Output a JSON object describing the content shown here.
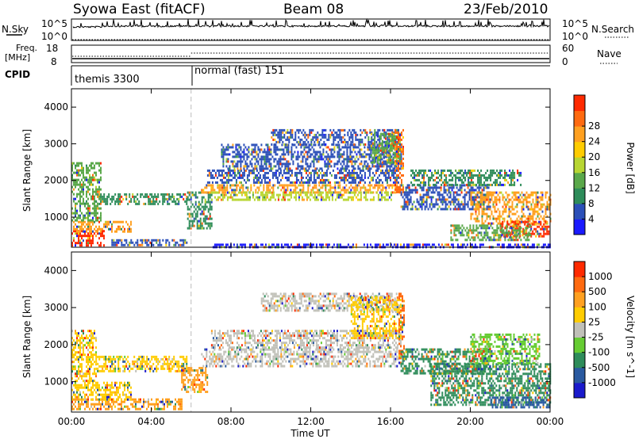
{
  "header": {
    "title": "Syowa East (fitACF)",
    "beam": "Beam 08",
    "date": "23/Feb/2010"
  },
  "status_panels": {
    "nsky_label": "N.Sky",
    "nsearch_label": "N.Search",
    "noise_ticks_left": [
      "10^5",
      "10^0"
    ],
    "noise_ticks_right": [
      "10^5",
      "10^0"
    ],
    "freq_label_line1": "Freq.",
    "freq_label_line2": "[MHz]",
    "freq_ticks": [
      "18",
      "8"
    ],
    "nave_label": "Nave",
    "nave_ticks": [
      "60",
      "0"
    ],
    "cpid_label": "CPID",
    "cpid_segments": [
      {
        "label": "themis 3300",
        "start_hour": 0,
        "end_hour": 6
      },
      {
        "label": "normal (fast) 151",
        "start_hour": 6,
        "end_hour": 24
      }
    ]
  },
  "chart_data": [
    {
      "type": "heatmap",
      "name": "power",
      "ylabel": "Slant Range [km]",
      "xlabel": "",
      "ylim": [
        180,
        4500
      ],
      "xlim": [
        0,
        24
      ],
      "yticks": [
        "1000",
        "2000",
        "3000",
        "4000"
      ],
      "xticks": [
        "00:00",
        "04:00",
        "08:00",
        "12:00",
        "16:00",
        "20:00",
        "00:00"
      ],
      "colorbar": {
        "label": "Power [dB]",
        "ticks": [
          "4",
          "8",
          "12",
          "16",
          "20",
          "24",
          "28"
        ],
        "colors": [
          "#1a1aff",
          "#2b4fb8",
          "#2e8c5a",
          "#5aa84a",
          "#b8d632",
          "#ffcc00",
          "#ffa020",
          "#ff6a10",
          "#ff2a00"
        ]
      },
      "regions": [
        {
          "t0": 0.0,
          "t1": 1.6,
          "r0": 250,
          "r1": 650,
          "color": "#ff2a00"
        },
        {
          "t0": 0.0,
          "t1": 3.0,
          "r0": 600,
          "r1": 900,
          "color": "#ffa020"
        },
        {
          "t0": 0.0,
          "t1": 1.5,
          "r0": 900,
          "r1": 2500,
          "color": "#5aa84a"
        },
        {
          "t0": 1.2,
          "t1": 5.8,
          "r0": 1350,
          "r1": 1650,
          "color": "#2e8c5a"
        },
        {
          "t0": 2.0,
          "t1": 5.8,
          "r0": 250,
          "r1": 400,
          "color": "#2b4fb8"
        },
        {
          "t0": 5.8,
          "t1": 7.0,
          "r0": 700,
          "r1": 1700,
          "color": "#2e8c5a"
        },
        {
          "t0": 6.5,
          "t1": 16.5,
          "r0": 1700,
          "r1": 1900,
          "color": "#ffa020"
        },
        {
          "t0": 7.0,
          "t1": 16.0,
          "r0": 1450,
          "r1": 1700,
          "color": "#b8d632"
        },
        {
          "t0": 6.8,
          "t1": 16.4,
          "r0": 1950,
          "r1": 2300,
          "color": "#2b4fb8"
        },
        {
          "t0": 7.5,
          "t1": 16.5,
          "r0": 2300,
          "r1": 3000,
          "color": "#2b4fb8"
        },
        {
          "t0": 10.0,
          "t1": 16.3,
          "r0": 3000,
          "r1": 3400,
          "color": "#2b4fb8"
        },
        {
          "t0": 15.0,
          "t1": 16.5,
          "r0": 2500,
          "r1": 3300,
          "color": "#5aa84a"
        },
        {
          "t0": 16.2,
          "t1": 16.6,
          "r0": 1600,
          "r1": 3400,
          "color": "#ff6a10"
        },
        {
          "t0": 16.5,
          "t1": 21.0,
          "r0": 1200,
          "r1": 1900,
          "color": "#2b4fb8"
        },
        {
          "t0": 17.0,
          "t1": 22.5,
          "r0": 1900,
          "r1": 2300,
          "color": "#2e8c5a"
        },
        {
          "t0": 20.0,
          "t1": 24.0,
          "r0": 800,
          "r1": 1700,
          "color": "#ffa020"
        },
        {
          "t0": 21.5,
          "t1": 24.0,
          "r0": 500,
          "r1": 900,
          "color": "#ff2a00"
        },
        {
          "t0": 19.0,
          "t1": 23.0,
          "r0": 400,
          "r1": 800,
          "color": "#5aa84a"
        },
        {
          "t0": 7.0,
          "t1": 24.0,
          "r0": 200,
          "r1": 280,
          "color": "#1a1aff"
        }
      ]
    },
    {
      "type": "heatmap",
      "name": "velocity",
      "ylabel": "Slant Range [km]",
      "xlabel": "Time UT",
      "ylim": [
        180,
        4500
      ],
      "xlim": [
        0,
        24
      ],
      "yticks": [
        "1000",
        "2000",
        "3000",
        "4000"
      ],
      "xticks": [
        "00:00",
        "04:00",
        "08:00",
        "12:00",
        "16:00",
        "20:00",
        "00:00"
      ],
      "colorbar": {
        "label": "Velocity [m s^-1]",
        "ticks": [
          "1000",
          "500",
          "100",
          "25",
          "-25",
          "-100",
          "-500",
          "-1000"
        ],
        "colors": [
          "#1a1acc",
          "#2a5aa0",
          "#2e8c5a",
          "#66cc33",
          "#c0c0b8",
          "#ffcc00",
          "#ffa020",
          "#ff6a10",
          "#ff2a00"
        ]
      },
      "regions": [
        {
          "t0": 0.0,
          "t1": 5.5,
          "r0": 250,
          "r1": 550,
          "color": "#ffa020"
        },
        {
          "t0": 0.0,
          "t1": 3.0,
          "r0": 550,
          "r1": 1000,
          "color": "#ffcc00"
        },
        {
          "t0": 0.0,
          "t1": 1.2,
          "r0": 1000,
          "r1": 2400,
          "color": "#ffcc00"
        },
        {
          "t0": 1.2,
          "t1": 5.8,
          "r0": 1300,
          "r1": 1700,
          "color": "#ffcc00"
        },
        {
          "t0": 5.5,
          "t1": 6.8,
          "r0": 700,
          "r1": 1400,
          "color": "#ffa020"
        },
        {
          "t0": 6.5,
          "t1": 16.5,
          "r0": 1400,
          "r1": 1900,
          "color": "#c0c0b8"
        },
        {
          "t0": 7.0,
          "t1": 16.5,
          "r0": 1900,
          "r1": 2400,
          "color": "#c0c0b8"
        },
        {
          "t0": 9.5,
          "t1": 16.3,
          "r0": 2900,
          "r1": 3400,
          "color": "#c0c0b8"
        },
        {
          "t0": 14.0,
          "t1": 16.5,
          "r0": 2200,
          "r1": 3300,
          "color": "#ffcc00"
        },
        {
          "t0": 16.4,
          "t1": 16.7,
          "r0": 1500,
          "r1": 3400,
          "color": "#ff6a10"
        },
        {
          "t0": 16.5,
          "t1": 21.0,
          "r0": 1200,
          "r1": 1900,
          "color": "#2e8c5a"
        },
        {
          "t0": 18.0,
          "t1": 24.0,
          "r0": 400,
          "r1": 1500,
          "color": "#2e8c5a"
        },
        {
          "t0": 20.0,
          "t1": 23.5,
          "r0": 1500,
          "r1": 2300,
          "color": "#66cc33"
        },
        {
          "t0": 21.0,
          "t1": 24.0,
          "r0": 300,
          "r1": 600,
          "color": "#2a5aa0"
        }
      ]
    }
  ]
}
